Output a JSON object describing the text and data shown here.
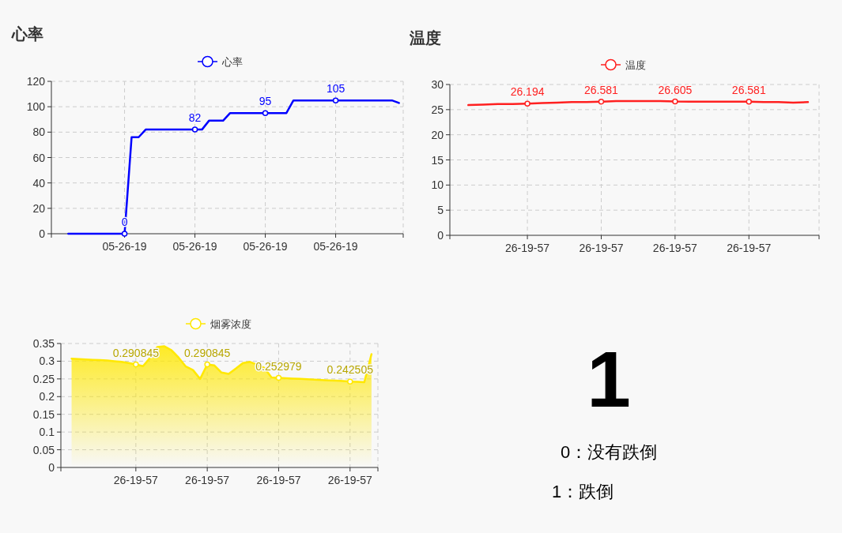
{
  "chart_data": [
    {
      "type": "line",
      "title": "心率",
      "categories": [
        null,
        null,
        null,
        null,
        null,
        null,
        null,
        null,
        "05-26-19",
        null,
        null,
        null,
        null,
        null,
        null,
        null,
        null,
        null,
        "05-26-19",
        null,
        null,
        null,
        null,
        null,
        null,
        null,
        null,
        null,
        "05-26-19",
        null,
        null,
        null,
        null,
        null,
        null,
        null,
        null,
        null,
        "05-26-19",
        null,
        null,
        null,
        null,
        null,
        null,
        null,
        null,
        null
      ],
      "ylim": [
        0,
        120
      ],
      "yticks": [
        0,
        20,
        40,
        60,
        80,
        100,
        120
      ],
      "grid": true,
      "legend": "top",
      "line_style": "solid",
      "series": [
        {
          "name": "心率",
          "color": "#0000ff",
          "values": [
            0,
            0,
            0,
            0,
            0,
            0,
            0,
            0,
            0,
            76,
            76,
            82,
            82,
            82,
            82,
            82,
            82,
            82,
            82,
            82,
            89,
            89,
            89,
            95,
            95,
            95,
            95,
            95,
            95,
            95,
            95,
            95,
            105,
            105,
            105,
            105,
            105,
            105,
            105,
            105,
            105,
            105,
            105,
            105,
            105,
            105,
            105,
            103
          ],
          "value_labels": [
            null,
            null,
            null,
            null,
            null,
            null,
            null,
            null,
            "0",
            null,
            null,
            null,
            null,
            null,
            null,
            null,
            null,
            null,
            "82",
            null,
            null,
            null,
            null,
            null,
            null,
            null,
            null,
            null,
            "95",
            null,
            null,
            null,
            null,
            null,
            null,
            null,
            null,
            null,
            "105",
            null,
            null,
            null,
            null,
            null,
            null,
            null,
            null,
            null
          ]
        }
      ]
    },
    {
      "type": "line",
      "title": "温度",
      "categories": [
        null,
        null,
        null,
        null,
        "26-19-57",
        null,
        null,
        null,
        null,
        "26-19-57",
        null,
        null,
        null,
        null,
        "26-19-57",
        null,
        null,
        null,
        null,
        "26-19-57",
        null,
        null,
        null,
        null
      ],
      "ylim": [
        0,
        30
      ],
      "yticks": [
        0,
        5,
        10,
        15,
        20,
        25,
        30
      ],
      "grid": true,
      "legend": "top",
      "line_style": "solid",
      "series": [
        {
          "name": "温度",
          "color": "#ff2020",
          "values": [
            25.9,
            26.0,
            26.1,
            26.1,
            26.194,
            26.3,
            26.4,
            26.5,
            26.5,
            26.581,
            26.7,
            26.7,
            26.7,
            26.7,
            26.605,
            26.6,
            26.6,
            26.6,
            26.6,
            26.581,
            26.5,
            26.5,
            26.4,
            26.5
          ],
          "value_labels": [
            null,
            null,
            null,
            null,
            "26.194",
            null,
            null,
            null,
            null,
            "26.581",
            null,
            null,
            null,
            null,
            "26.605",
            null,
            null,
            null,
            null,
            "26.581",
            null,
            null,
            null,
            null
          ]
        }
      ]
    },
    {
      "type": "area",
      "categories": [
        null,
        null,
        null,
        null,
        null,
        null,
        null,
        null,
        null,
        "26-19-57",
        null,
        null,
        null,
        null,
        null,
        null,
        null,
        null,
        null,
        "26-19-57",
        null,
        null,
        null,
        null,
        null,
        null,
        null,
        null,
        null,
        "26-19-57",
        null,
        null,
        null,
        null,
        null,
        null,
        null,
        null,
        null,
        "26-19-57",
        null,
        null,
        null
      ],
      "ylim": [
        0,
        0.35
      ],
      "yticks": [
        0,
        0.05,
        0.1,
        0.15,
        0.2,
        0.25,
        0.3,
        0.35
      ],
      "grid": true,
      "legend": "top",
      "line_style": "solid",
      "series": [
        {
          "name": "烟雾浓度",
          "color": "#ffe800",
          "values": [
            0.307,
            0.306,
            0.305,
            0.304,
            0.303,
            0.302,
            0.3,
            0.298,
            0.295,
            0.290845,
            0.286,
            0.31,
            0.34,
            0.342,
            0.331,
            0.31,
            0.285,
            0.275,
            0.25,
            0.290845,
            0.288,
            0.268,
            0.264,
            0.279,
            0.295,
            0.298,
            0.29,
            0.281,
            0.254,
            0.252979,
            0.252,
            0.251,
            0.25,
            0.249,
            0.248,
            0.247,
            0.246,
            0.245,
            0.244,
            0.242505,
            0.242,
            0.241,
            0.32
          ],
          "value_labels": [
            null,
            null,
            null,
            null,
            null,
            null,
            null,
            null,
            null,
            "0.290845",
            null,
            null,
            null,
            null,
            null,
            null,
            null,
            null,
            null,
            "0.290845",
            null,
            null,
            null,
            null,
            null,
            null,
            null,
            null,
            null,
            "0.252979",
            null,
            null,
            null,
            null,
            null,
            null,
            null,
            null,
            null,
            "0.242505",
            null,
            null,
            null
          ]
        }
      ]
    },
    {
      "type": "other",
      "annotations": [
        "1",
        "0：没有跌倒",
        "1：跌倒"
      ]
    }
  ]
}
